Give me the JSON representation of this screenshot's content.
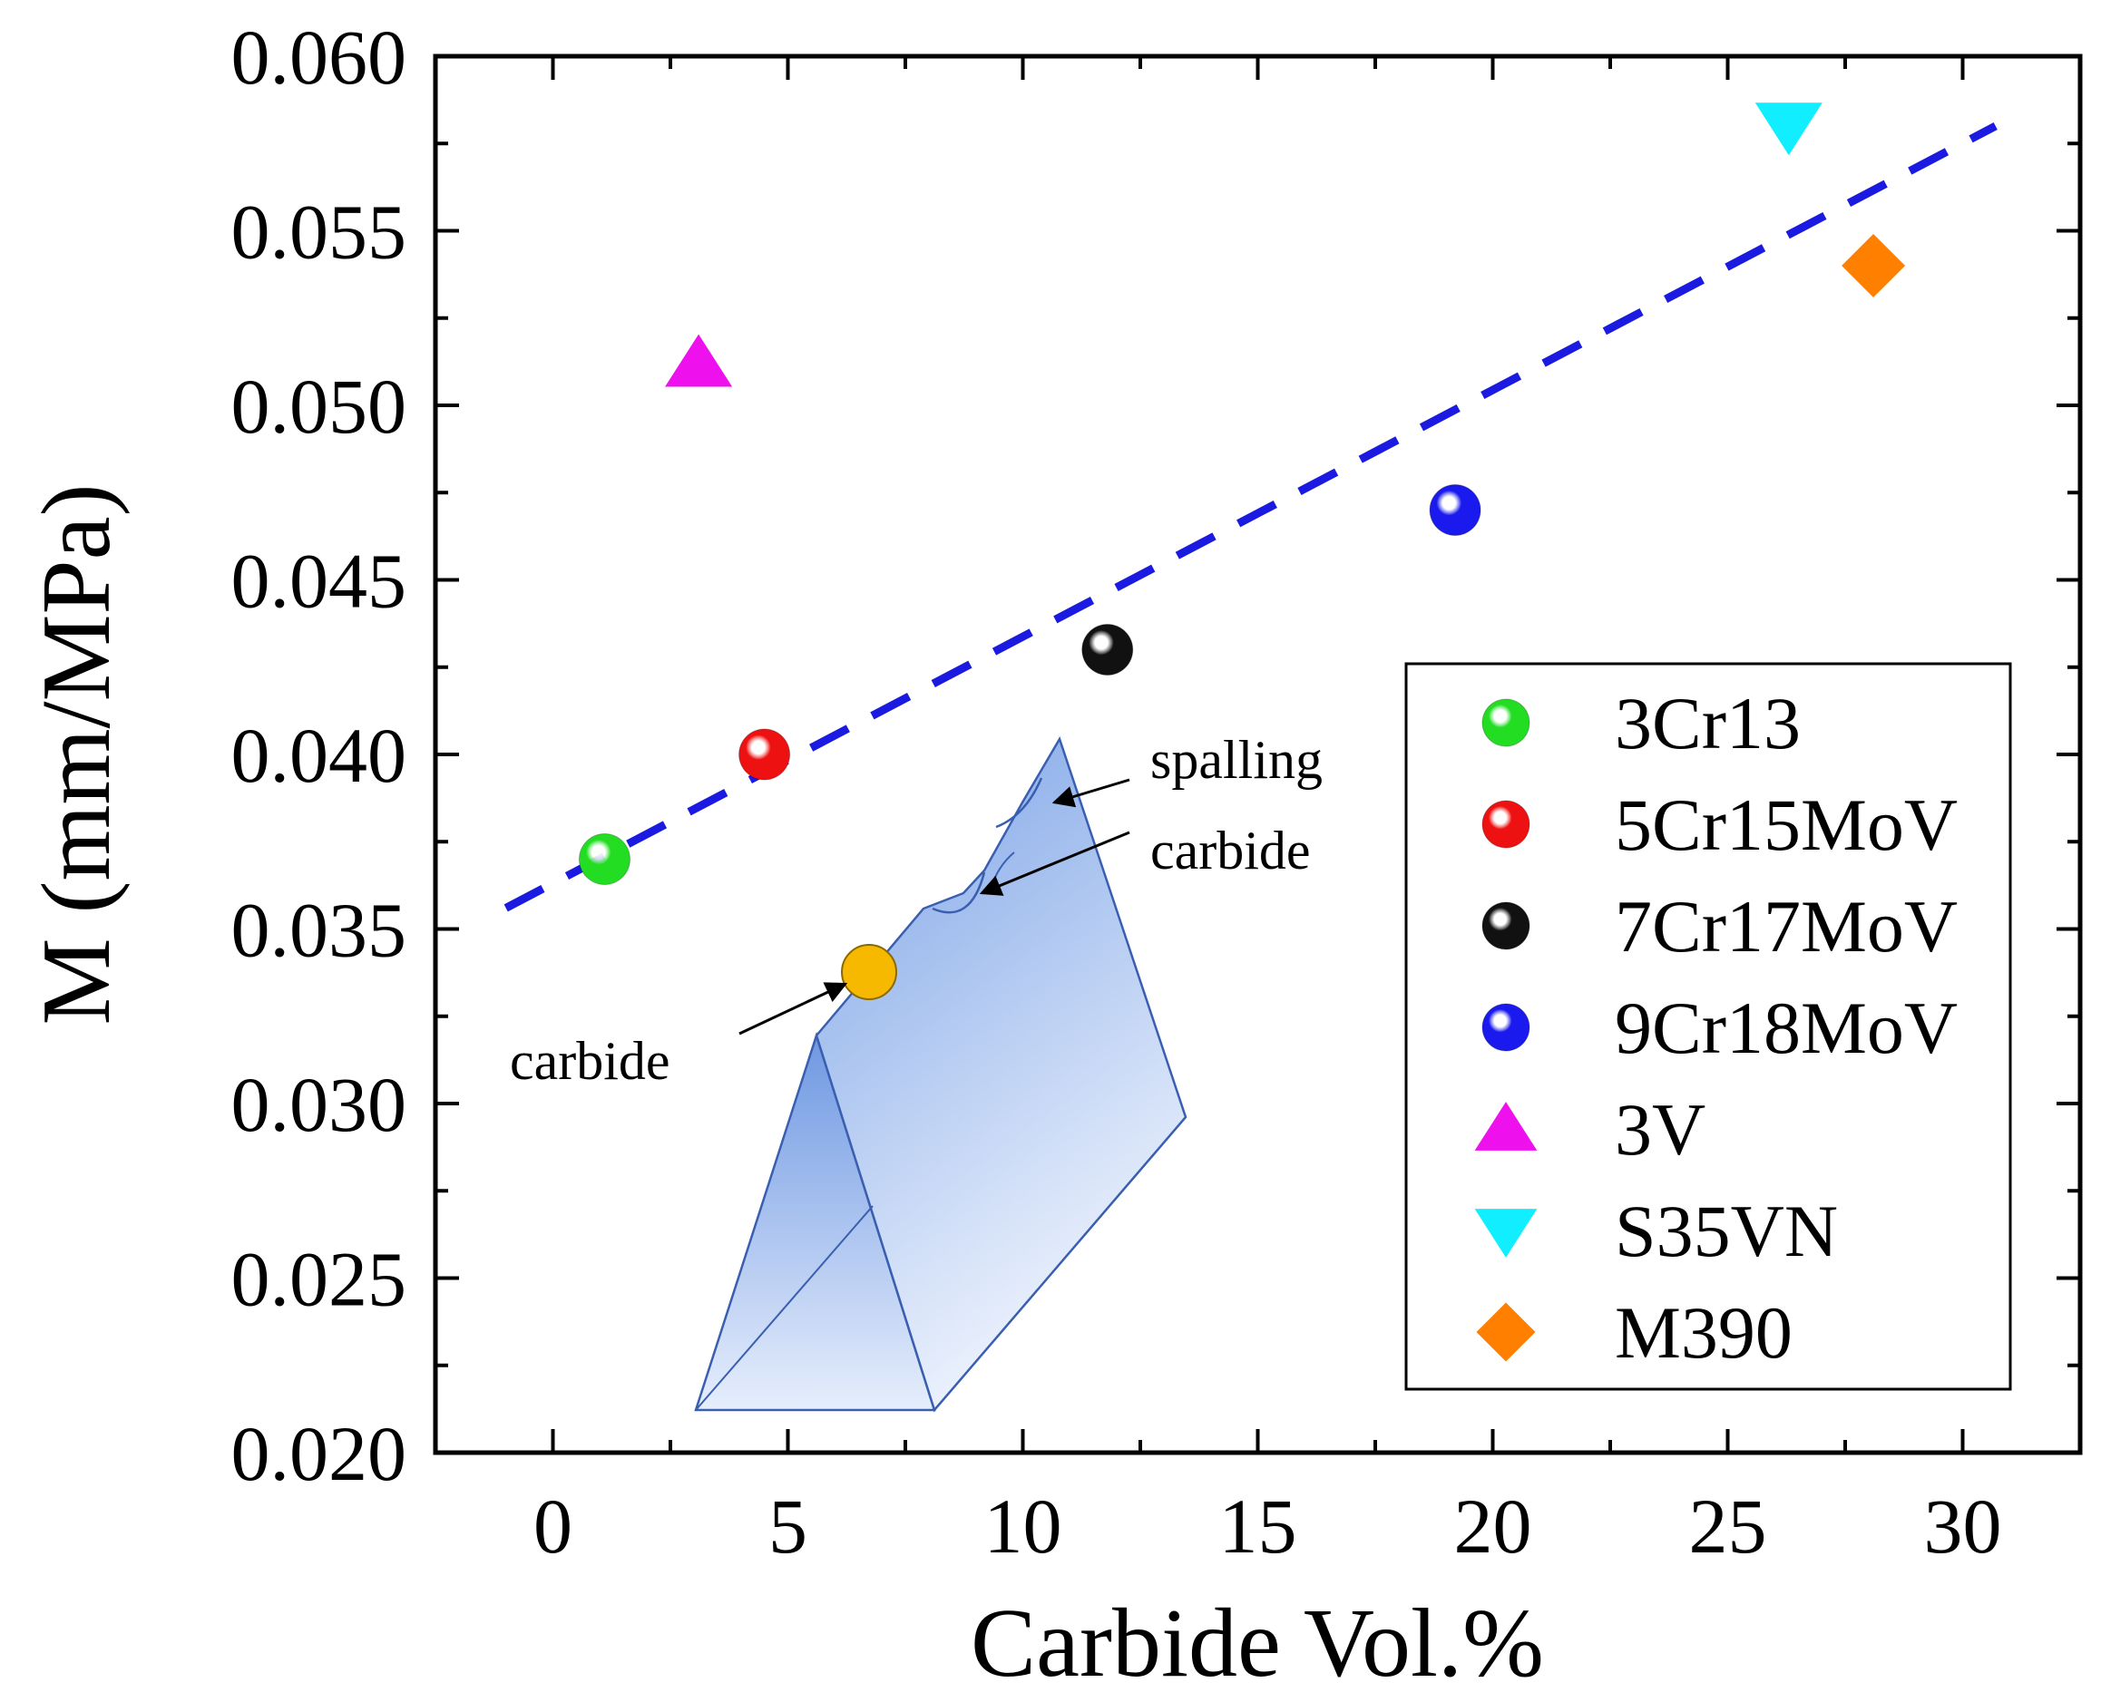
{
  "chart_data": {
    "type": "scatter",
    "title": "",
    "xlabel": "Carbide Vol.%",
    "ylabel": "M (mm/MPa)",
    "xlim": [
      -2.5,
      32.5
    ],
    "ylim": [
      0.02,
      0.06
    ],
    "xticks": [
      0,
      5,
      10,
      15,
      20,
      25,
      30
    ],
    "xtick_labels": [
      "0",
      "5",
      "10",
      "15",
      "20",
      "25",
      "30"
    ],
    "yticks": [
      0.02,
      0.025,
      0.03,
      0.035,
      0.04,
      0.045,
      0.05,
      0.055,
      0.06
    ],
    "ytick_labels": [
      "0.020",
      "0.025",
      "0.030",
      "0.035",
      "0.040",
      "0.045",
      "0.050",
      "0.055",
      "0.060"
    ],
    "legend_position": "bottom-right",
    "series": [
      {
        "name": "3Cr13",
        "marker": "sphere",
        "color": "#22dd22",
        "x": 1.1,
        "y": 0.037
      },
      {
        "name": "5Cr15MoV",
        "marker": "sphere",
        "color": "#ee1111",
        "x": 4.5,
        "y": 0.04
      },
      {
        "name": "7Cr17MoV",
        "marker": "sphere",
        "color": "#111111",
        "x": 11.8,
        "y": 0.043
      },
      {
        "name": "9Cr18MoV",
        "marker": "sphere",
        "color": "#1a1aee",
        "x": 19.2,
        "y": 0.047
      },
      {
        "name": "3V",
        "marker": "triangle-up",
        "color": "#ee11ee",
        "x": 3.1,
        "y": 0.0512
      },
      {
        "name": "S35VN",
        "marker": "triangle-down",
        "color": "#11eeff",
        "x": 26.3,
        "y": 0.058
      },
      {
        "name": "M390",
        "marker": "diamond",
        "color": "#ff8000",
        "x": 28.1,
        "y": 0.054
      }
    ],
    "fit_line": {
      "style": "dashed",
      "color": "#1a1ae0",
      "x": [
        -1.0,
        30.7
      ],
      "y": [
        0.0356,
        0.058
      ]
    },
    "inset_labels": {
      "spalling": "spalling",
      "carbide_top": "carbide",
      "carbide_bottom": "carbide"
    },
    "inset_colors": {
      "blade": "#4a7fd8",
      "carbide": "#f7b800"
    }
  }
}
